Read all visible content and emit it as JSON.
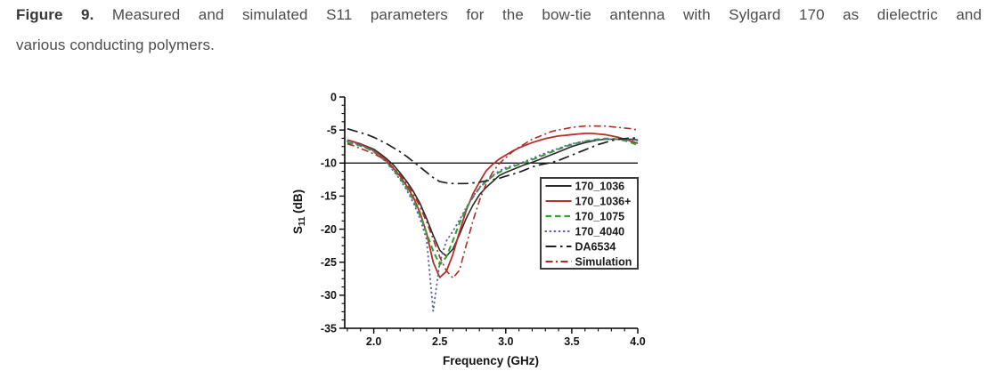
{
  "caption": {
    "figure_label": "Figure 9.",
    "line1": "Measured and simulated S11 parameters for the bow-tie antenna with Sylgard 170 as dielectric and",
    "line2": "various conducting polymers."
  },
  "chart_data": {
    "type": "line",
    "title": "",
    "xlabel": "Frequency (GHz)",
    "ylabel": "S11 (dB)",
    "ylabel_parts": {
      "base": "S",
      "sub": "11",
      "rest": " (dB)"
    },
    "xlim": [
      1.78,
      4.0
    ],
    "ylim": [
      -35,
      0
    ],
    "x_major_ticks": [
      2.0,
      2.5,
      3.0,
      3.5,
      4.0
    ],
    "x_tick_labels": [
      "2.0",
      "2.5",
      "3.0",
      "3.5",
      "4.0"
    ],
    "x_minor_step": 0.1,
    "y_major_ticks": [
      0,
      -5,
      -10,
      -15,
      -20,
      -25,
      -30,
      -35
    ],
    "y_tick_labels": [
      "0",
      "-5",
      "-10",
      "-15",
      "-20",
      "-25",
      "-30",
      "-35"
    ],
    "y_minor_step": 1.25,
    "reference_line_y": -10,
    "grid": false,
    "legend_position": "right-middle",
    "axis_color": "#000000",
    "background_color": "#ffffff",
    "x": [
      1.8,
      1.85,
      1.9,
      1.95,
      2.0,
      2.05,
      2.1,
      2.15,
      2.2,
      2.25,
      2.3,
      2.35,
      2.4,
      2.45,
      2.5,
      2.55,
      2.6,
      2.65,
      2.7,
      2.75,
      2.8,
      2.85,
      2.9,
      2.95,
      3.0,
      3.05,
      3.1,
      3.15,
      3.2,
      3.25,
      3.3,
      3.35,
      3.4,
      3.45,
      3.5,
      3.55,
      3.6,
      3.65,
      3.7,
      3.75,
      3.8,
      3.85,
      3.9,
      3.95,
      4.0
    ],
    "series": [
      {
        "name": "170_1036",
        "color": "#2b2b2b",
        "style": "solid",
        "width": 1.6,
        "values": [
          -6.6,
          -6.8,
          -7.1,
          -7.5,
          -7.9,
          -8.6,
          -9.4,
          -10.3,
          -11.5,
          -12.8,
          -14.3,
          -16.1,
          -18.4,
          -20.9,
          -23.2,
          -24.1,
          -23.0,
          -20.8,
          -18.4,
          -16.4,
          -14.8,
          -13.7,
          -12.8,
          -11.9,
          -11.4,
          -11.0,
          -10.6,
          -10.2,
          -9.9,
          -9.5,
          -9.1,
          -8.7,
          -8.3,
          -7.9,
          -7.5,
          -7.2,
          -6.9,
          -6.7,
          -6.5,
          -6.4,
          -6.4,
          -6.4,
          -6.4,
          -6.4,
          -6.5
        ]
      },
      {
        "name": "170_1036+",
        "color": "#b52f2b",
        "style": "solid",
        "width": 1.8,
        "values": [
          -6.5,
          -6.8,
          -7.2,
          -7.6,
          -8.1,
          -8.8,
          -9.7,
          -10.8,
          -12.0,
          -13.5,
          -15.2,
          -17.5,
          -20.6,
          -25.0,
          -27.3,
          -26.4,
          -23.8,
          -20.4,
          -17.2,
          -14.7,
          -12.9,
          -11.2,
          -10.2,
          -9.4,
          -8.8,
          -8.2,
          -7.7,
          -7.3,
          -6.9,
          -6.6,
          -6.3,
          -6.1,
          -5.9,
          -5.8,
          -5.7,
          -5.6,
          -5.5,
          -5.5,
          -5.6,
          -5.7,
          -5.9,
          -6.1,
          -6.4,
          -6.7,
          -7.0
        ]
      },
      {
        "name": "170_1075",
        "color": "#33a02c",
        "style": "dash",
        "width": 2.0,
        "values": [
          -6.9,
          -7.1,
          -7.4,
          -7.8,
          -8.3,
          -9.0,
          -9.9,
          -11.0,
          -12.3,
          -13.8,
          -15.6,
          -17.9,
          -20.6,
          -23.3,
          -25.4,
          -24.2,
          -21.7,
          -19.1,
          -16.9,
          -15.2,
          -13.8,
          -12.8,
          -12.0,
          -11.4,
          -10.9,
          -10.6,
          -10.2,
          -9.9,
          -9.5,
          -9.1,
          -8.7,
          -8.3,
          -7.9,
          -7.5,
          -7.2,
          -6.9,
          -6.7,
          -6.5,
          -6.4,
          -6.3,
          -6.3,
          -6.4,
          -6.6,
          -6.9,
          -7.3
        ]
      },
      {
        "name": "170_4040",
        "color": "#5d68ae",
        "style": "dot",
        "width": 2.0,
        "values": [
          -6.7,
          -7.0,
          -7.3,
          -7.7,
          -8.2,
          -9.0,
          -10.0,
          -11.2,
          -12.5,
          -14.1,
          -16.0,
          -18.4,
          -21.5,
          -32.4,
          -25.0,
          -21.8,
          -20.3,
          -18.6,
          -16.8,
          -15.1,
          -13.7,
          -12.7,
          -11.9,
          -11.2,
          -10.7,
          -10.4,
          -10.1,
          -9.7,
          -9.3,
          -8.9,
          -8.5,
          -8.1,
          -7.8,
          -7.4,
          -7.1,
          -6.9,
          -6.7,
          -6.6,
          -6.5,
          -6.4,
          -6.4,
          -6.4,
          -6.5,
          -6.5,
          -6.6
        ]
      },
      {
        "name": "DA6534",
        "color": "#1f1f1f",
        "style": "dashdot",
        "width": 1.7,
        "values": [
          -4.8,
          -5.1,
          -5.4,
          -5.7,
          -6.1,
          -6.6,
          -7.1,
          -7.7,
          -8.3,
          -9.0,
          -9.8,
          -10.6,
          -11.4,
          -12.2,
          -12.8,
          -13.0,
          -13.1,
          -13.1,
          -13.1,
          -13.0,
          -12.9,
          -12.7,
          -12.5,
          -12.3,
          -12.0,
          -11.7,
          -11.4,
          -11.0,
          -10.6,
          -10.3,
          -10.1,
          -9.9,
          -9.6,
          -9.2,
          -8.8,
          -8.4,
          -8.0,
          -7.6,
          -7.2,
          -6.9,
          -6.6,
          -6.4,
          -6.3,
          -6.2,
          -6.2
        ]
      },
      {
        "name": "Simulation",
        "color": "#ad2d29",
        "style": "dashdotfine",
        "width": 1.6,
        "values": [
          -7.1,
          -7.4,
          -7.8,
          -8.2,
          -8.6,
          -9.1,
          -9.8,
          -10.7,
          -11.8,
          -13.1,
          -14.7,
          -16.6,
          -18.9,
          -21.5,
          -24.2,
          -26.3,
          -27.4,
          -26.2,
          -22.5,
          -18.8,
          -15.7,
          -13.2,
          -11.4,
          -10.1,
          -9.2,
          -8.3,
          -7.6,
          -7.0,
          -6.4,
          -6.0,
          -5.6,
          -5.2,
          -5.0,
          -4.8,
          -4.6,
          -4.5,
          -4.4,
          -4.4,
          -4.4,
          -4.4,
          -4.5,
          -4.6,
          -4.7,
          -4.8,
          -5.0
        ]
      }
    ]
  }
}
